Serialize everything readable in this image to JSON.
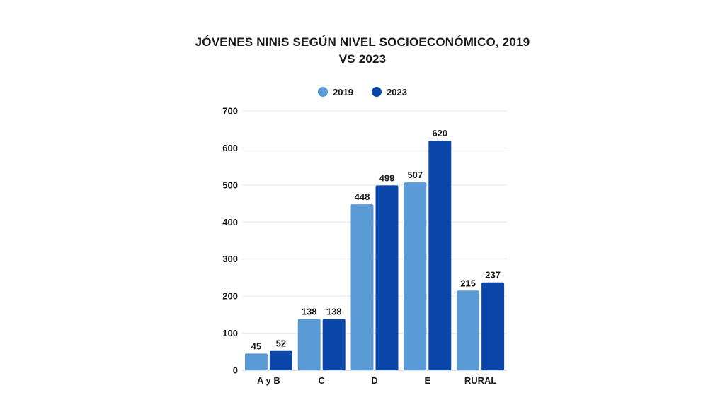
{
  "chart_data": {
    "type": "bar",
    "title": "JÓVENES NINIS SEGÚN NIVEL SOCIOECONÓMICO, 2019 VS 2023",
    "categories": [
      "A y B",
      "C",
      "D",
      "E",
      "RURAL"
    ],
    "series": [
      {
        "name": "2019",
        "values": [
          45,
          138,
          448,
          507,
          215
        ],
        "color": "#5b9bd5"
      },
      {
        "name": "2023",
        "values": [
          52,
          138,
          499,
          620,
          237
        ],
        "color": "#0b47aa"
      }
    ],
    "yticks": [
      0,
      100,
      200,
      300,
      400,
      500,
      600,
      700
    ],
    "ylim": [
      0,
      700
    ],
    "grid": true,
    "legend_position": "top-center"
  }
}
